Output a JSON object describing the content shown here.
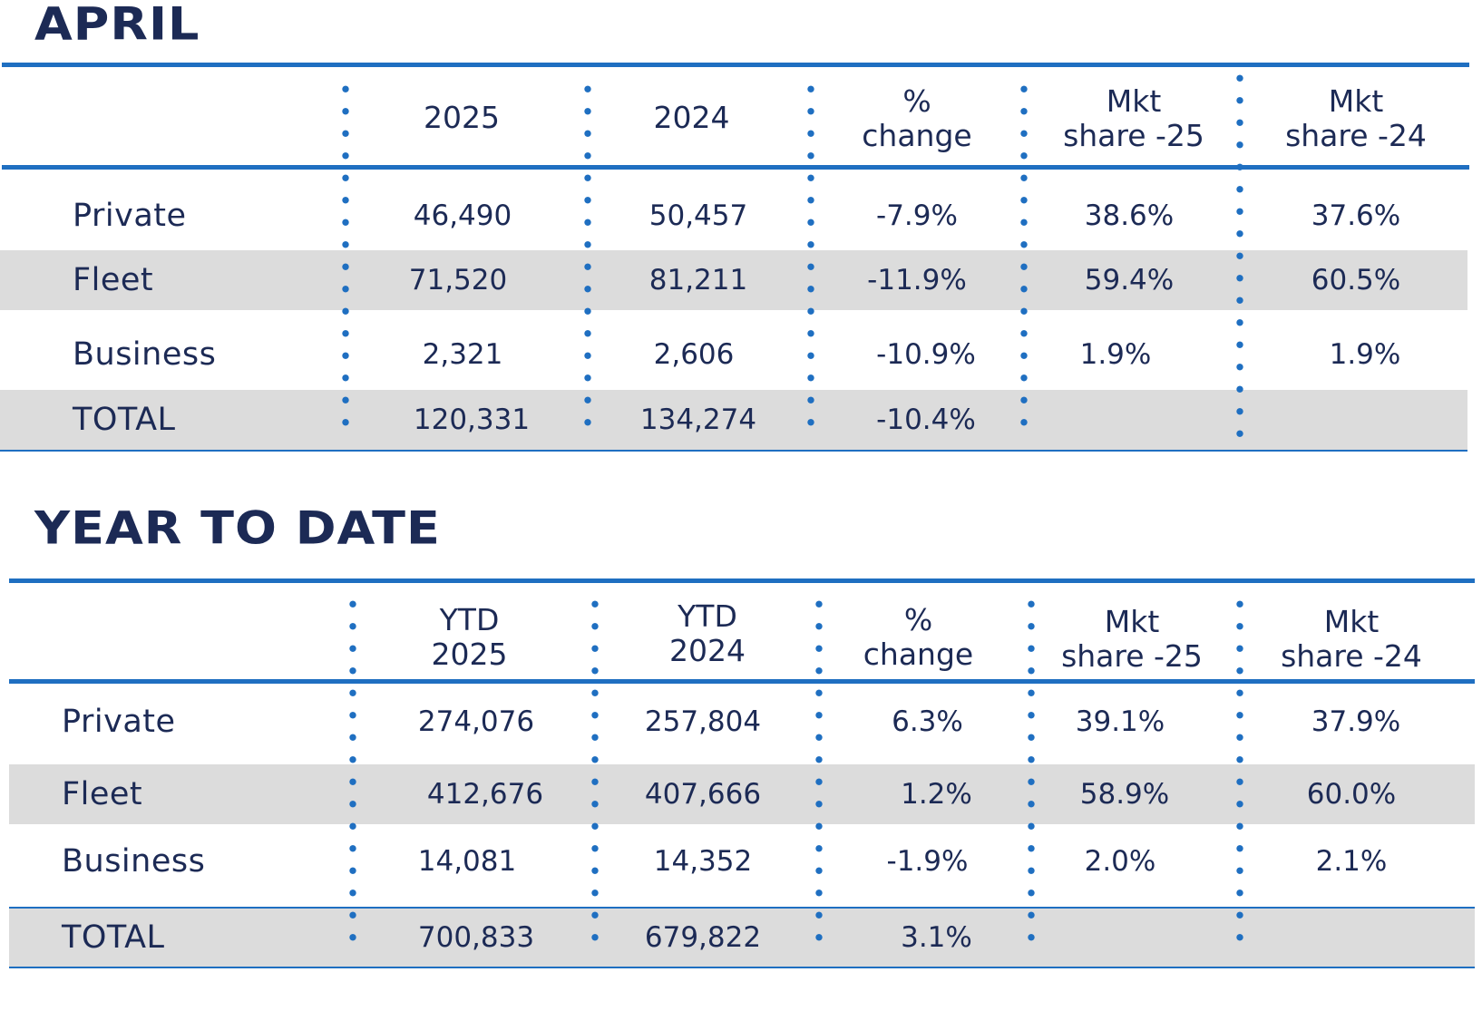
{
  "april": {
    "title": "APRIL",
    "headers": [
      "2025",
      "2024",
      "%\nchange",
      "Mkt\nshare -25",
      "Mkt\nshare -24"
    ],
    "rows": [
      {
        "label": "Private",
        "v2025": "46,490",
        "v2024": "50,457",
        "change": "-7.9%",
        "share25": "38.6%",
        "share24": "37.6%"
      },
      {
        "label": "Fleet",
        "v2025": "71,520",
        "v2024": "81,211",
        "change": "-11.9%",
        "share25": "59.4%",
        "share24": "60.5%"
      },
      {
        "label": "Business",
        "v2025": "2,321",
        "v2024": "2,606",
        "change": "-10.9%",
        "share25": "1.9%",
        "share24": "1.9%"
      },
      {
        "label": "TOTAL",
        "v2025": "120,331",
        "v2024": "134,274",
        "change": "-10.4%",
        "share25": "",
        "share24": ""
      }
    ]
  },
  "ytd": {
    "title": "YEAR TO DATE",
    "headers": [
      "YTD\n2025",
      "YTD\n2024",
      "%\nchange",
      "Mkt\nshare -25",
      "Mkt\nshare -24"
    ],
    "rows": [
      {
        "label": "Private",
        "v2025": "274,076",
        "v2024": "257,804",
        "change": "6.3%",
        "share25": "39.1%",
        "share24": "37.9%"
      },
      {
        "label": "Fleet",
        "v2025": "412,676",
        "v2024": "407,666",
        "change": "1.2%",
        "share25": "58.9%",
        "share24": "60.0%"
      },
      {
        "label": "Business",
        "v2025": "14,081",
        "v2024": "14,352",
        "change": "-1.9%",
        "share25": "2.0%",
        "share24": "2.1%"
      },
      {
        "label": "TOTAL",
        "v2025": "700,833",
        "v2024": "679,822",
        "change": "3.1%",
        "share25": "",
        "share24": ""
      }
    ]
  },
  "colors": {
    "text": "#1c2a55",
    "accent": "#1f6fc1",
    "row_shade": "#dcdcdc"
  }
}
